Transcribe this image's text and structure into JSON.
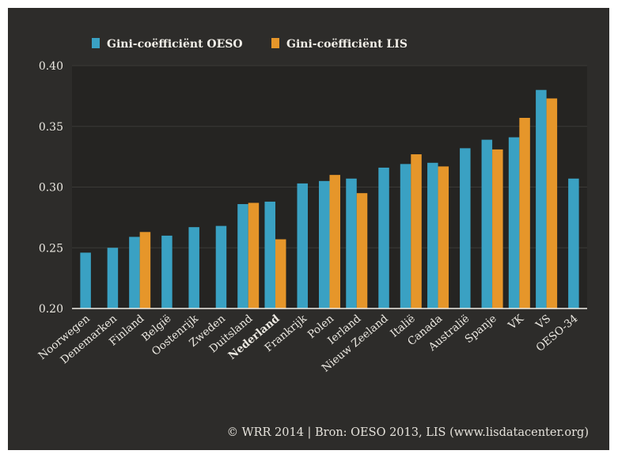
{
  "chart_data": {
    "type": "bar",
    "categories": [
      "Noorwegen",
      "Denemarken",
      "Finland",
      "België",
      "Oostenrijk",
      "Zweden",
      "Duitsland",
      "Nederland",
      "Frankrijk",
      "Polen",
      "Ierland",
      "Nieuw Zeeland",
      "Italië",
      "Canada",
      "Australië",
      "Spanje",
      "VK",
      "VS",
      "OESO-34"
    ],
    "highlight_category": "Nederland",
    "series": [
      {
        "name": "Gini-coëfficiënt OESO",
        "color": "#3aa1c3",
        "values": [
          0.246,
          0.25,
          0.259,
          0.26,
          0.267,
          0.268,
          0.286,
          0.288,
          0.303,
          0.305,
          0.307,
          0.316,
          0.319,
          0.32,
          0.332,
          0.339,
          0.341,
          0.38,
          0.307
        ]
      },
      {
        "name": "Gini-coëfficiënt LIS",
        "color": "#e6962a",
        "values": [
          null,
          null,
          0.263,
          null,
          null,
          null,
          0.287,
          0.257,
          null,
          0.31,
          0.295,
          null,
          0.327,
          0.317,
          null,
          0.331,
          0.357,
          0.373,
          null
        ]
      }
    ],
    "ylim": [
      0.2,
      0.4
    ],
    "yticks": [
      "0.20",
      "0.25",
      "0.30",
      "0.35",
      "0.40"
    ],
    "legend_position": "top",
    "highlight_color": "#e6962a",
    "text_color": "#ece9e2",
    "background": "#2d2c2a"
  },
  "credit": "© WRR 2014 | Bron: OESO 2013, LIS (www.lisdatacenter.org)"
}
